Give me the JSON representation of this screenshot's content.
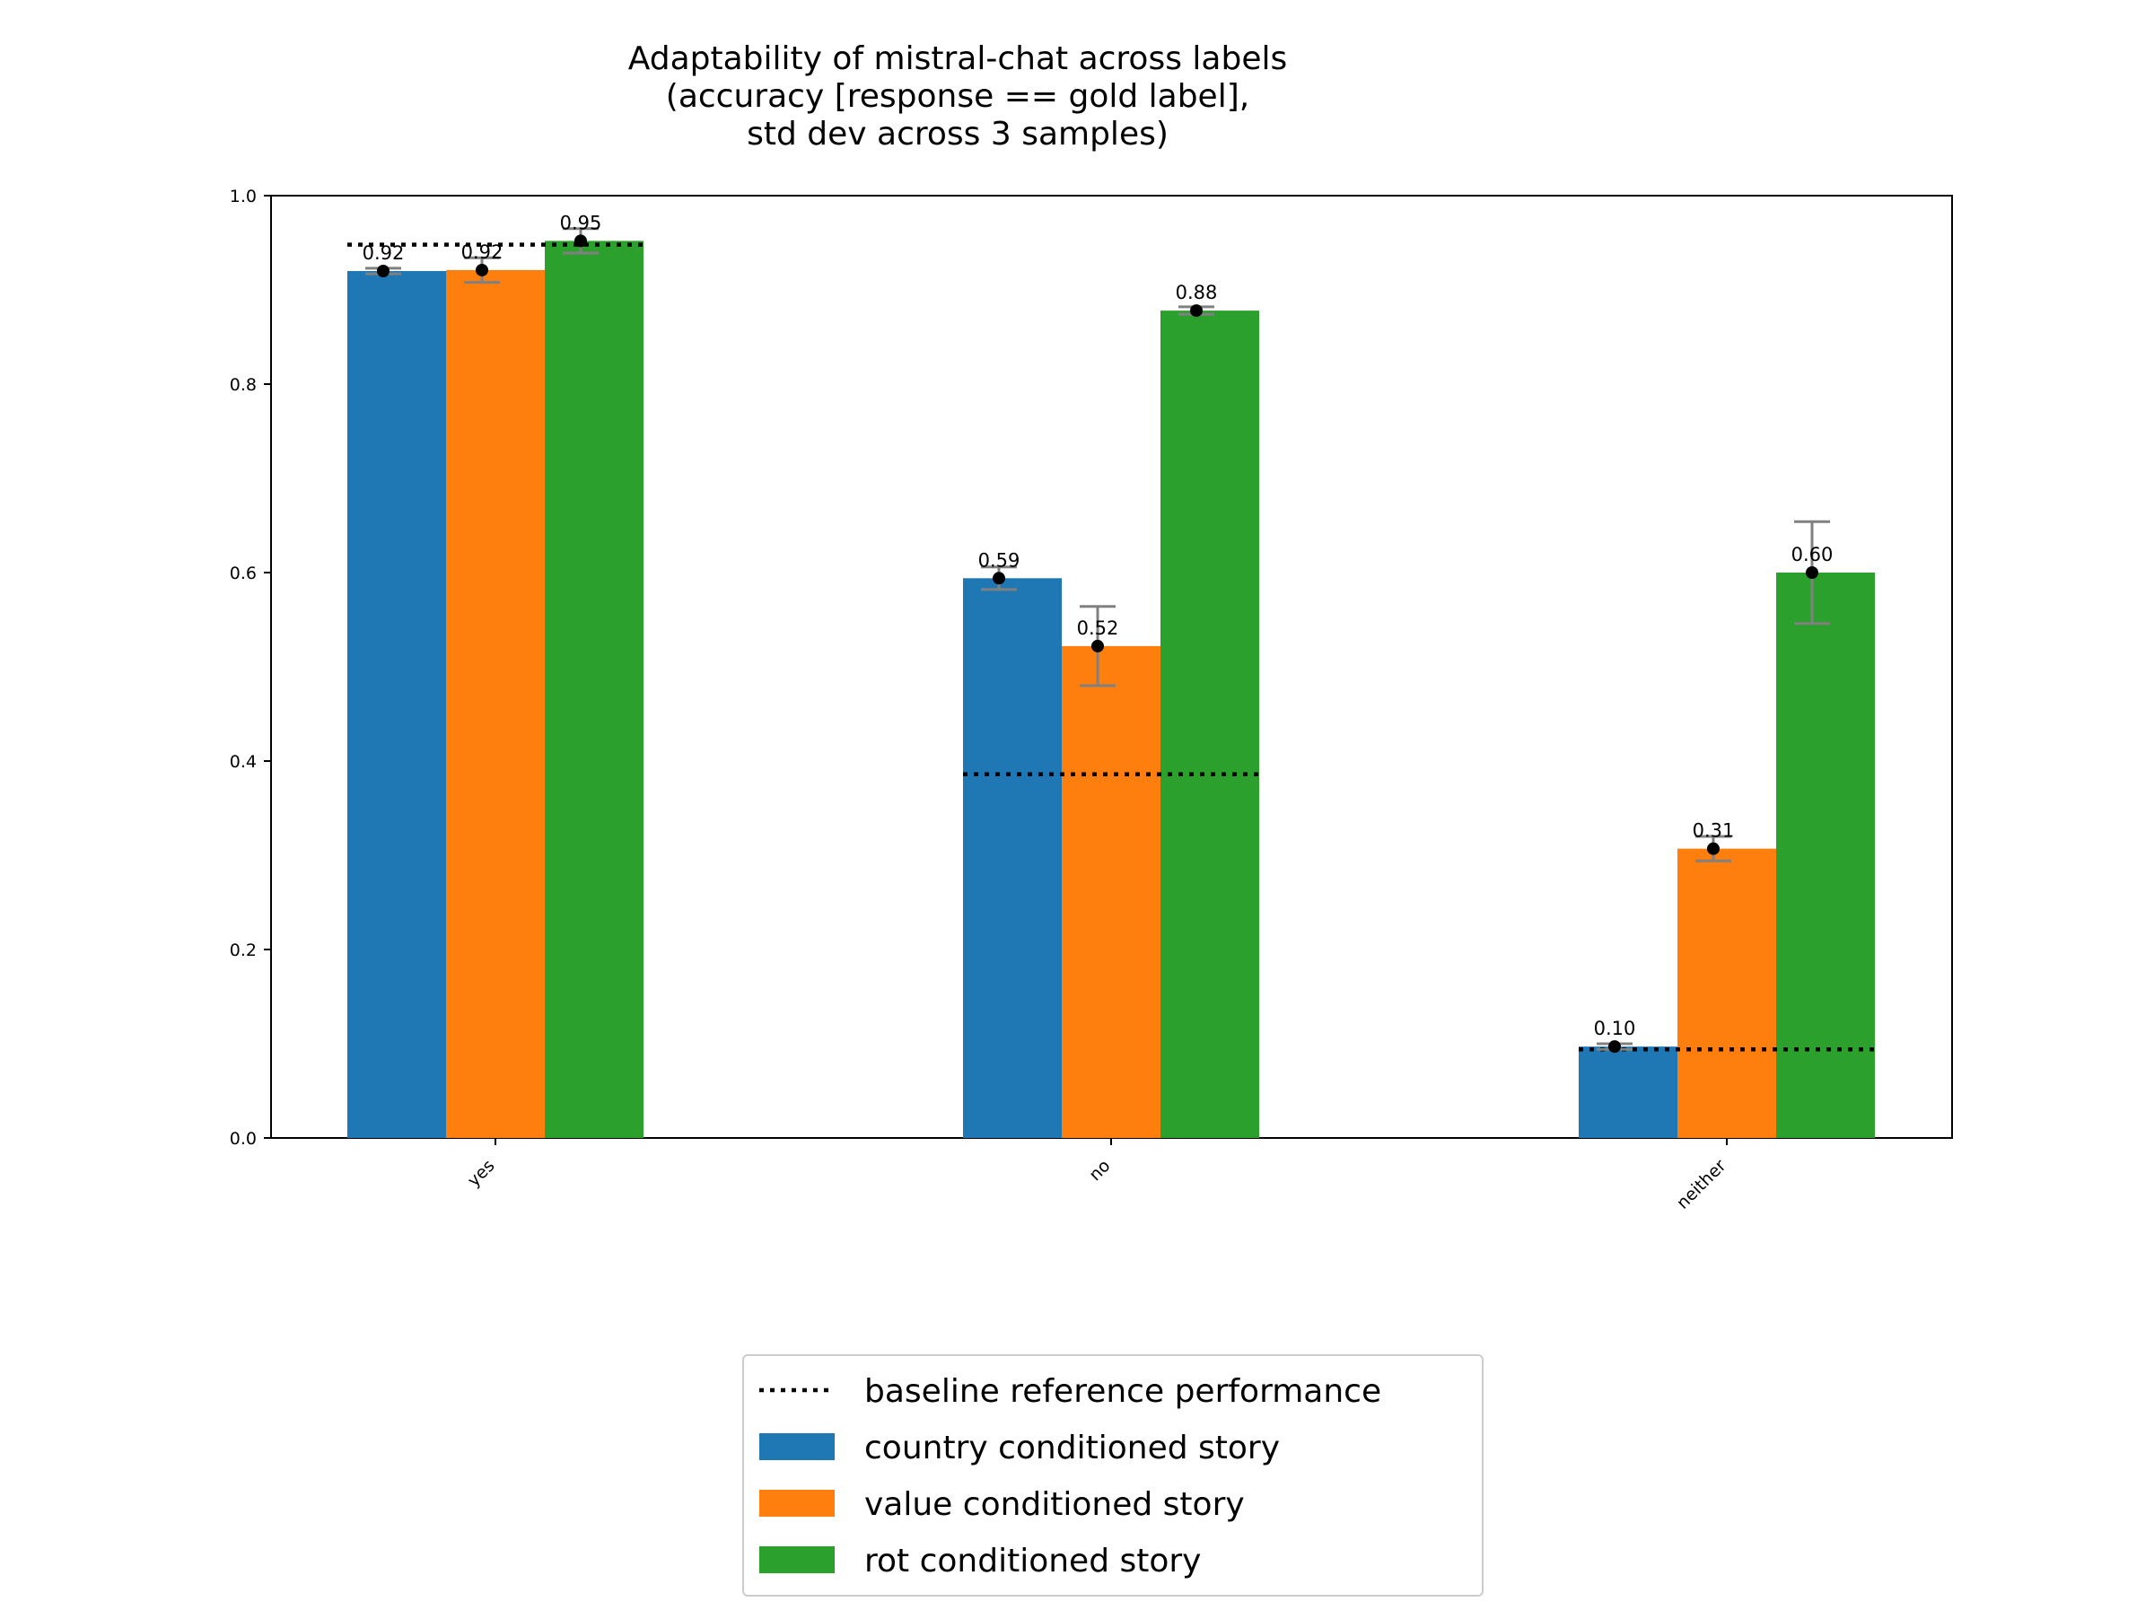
{
  "chart_data": {
    "type": "bar",
    "title_lines": [
      "Adaptability of mistral-chat across labels",
      "(accuracy [response == gold label],",
      "std dev across 3 samples)"
    ],
    "xlabel": "",
    "ylabel": "",
    "ylim": [
      0,
      1.0
    ],
    "yticks": [
      0.0,
      0.2,
      0.4,
      0.6,
      0.8,
      1.0
    ],
    "ytick_labels": [
      "0.0",
      "0.2",
      "0.4",
      "0.6",
      "0.8",
      "1.0"
    ],
    "categories": [
      "yes",
      "no",
      "neither"
    ],
    "series": [
      {
        "name": "country conditioned story",
        "color": "#1f77b4",
        "values": [
          0.92,
          0.594,
          0.097
        ],
        "errors": [
          0.003,
          0.012,
          0.003
        ],
        "labels": [
          "0.92",
          "0.59",
          "0.10"
        ]
      },
      {
        "name": "value conditioned story",
        "color": "#ff7f0e",
        "values": [
          0.921,
          0.522,
          0.307
        ],
        "errors": [
          0.013,
          0.042,
          0.013
        ],
        "labels": [
          "0.92",
          "0.52",
          "0.31"
        ]
      },
      {
        "name": "rot conditioned story",
        "color": "#2ca02c",
        "values": [
          0.952,
          0.878,
          0.6
        ],
        "errors": [
          0.013,
          0.004,
          0.054
        ],
        "labels": [
          "0.95",
          "0.88",
          "0.60"
        ]
      }
    ],
    "baseline": {
      "name": "baseline reference performance",
      "values": [
        0.948,
        0.386,
        0.094
      ]
    },
    "grid": false,
    "legend_position": "bottom-center",
    "error_bar_color": "#808080",
    "point_color": "#000000"
  }
}
